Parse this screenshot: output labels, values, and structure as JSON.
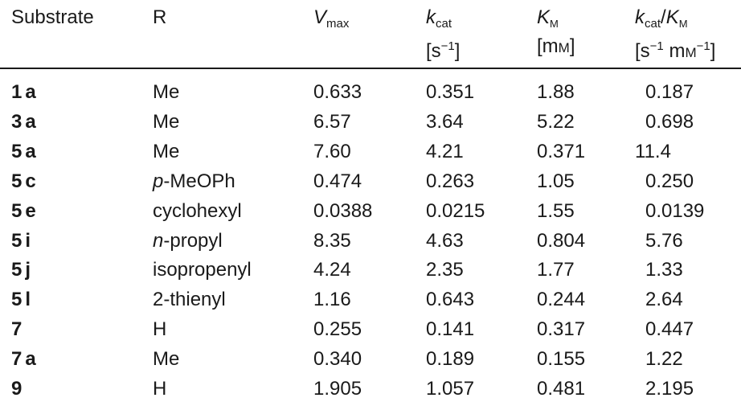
{
  "table": {
    "header": [
      [
        [
          {
            "t": "Substrate"
          }
        ]
      ],
      [
        [
          {
            "t": "R"
          }
        ]
      ],
      [
        [
          {
            "t": "V",
            "s": "italic"
          },
          {
            "t": "max",
            "s": "sub"
          }
        ]
      ],
      [
        [
          {
            "t": "k",
            "s": "italic"
          },
          {
            "t": "cat",
            "s": "sub"
          }
        ],
        [
          {
            "t": "[s"
          },
          {
            "t": "−1",
            "s": "sup"
          },
          {
            "t": "]"
          }
        ]
      ],
      [
        [
          {
            "t": "K",
            "s": "italic"
          },
          {
            "t": "M",
            "s": "sub smallcaps"
          }
        ],
        [
          {
            "t": "[m"
          },
          {
            "t": "M",
            "s": "smallcaps"
          },
          {
            "t": "]"
          }
        ]
      ],
      [
        [
          {
            "t": "k",
            "s": "italic"
          },
          {
            "t": "cat",
            "s": "sub"
          },
          {
            "t": "/"
          },
          {
            "t": "K",
            "s": "italic"
          },
          {
            "t": "M",
            "s": "sub smallcaps"
          }
        ],
        [
          {
            "t": "[s"
          },
          {
            "t": "−1",
            "s": "sup"
          },
          {
            "t": " m"
          },
          {
            "t": "M",
            "s": "smallcaps"
          },
          {
            "t": "−1",
            "s": "sup"
          },
          {
            "t": "]"
          }
        ]
      ]
    ],
    "rows": [
      {
        "substrate": "1a",
        "r": [
          {
            "t": "Me"
          }
        ],
        "values": [
          "0.633",
          "0.351",
          "1.88",
          "0.187"
        ]
      },
      {
        "substrate": "3a",
        "r": [
          {
            "t": "Me"
          }
        ],
        "values": [
          "6.57",
          "3.64",
          "5.22",
          "0.698"
        ]
      },
      {
        "substrate": "5a",
        "r": [
          {
            "t": "Me"
          }
        ],
        "values": [
          "7.60",
          "4.21",
          "0.371",
          "11.4"
        ]
      },
      {
        "substrate": "5c",
        "r": [
          {
            "t": "p",
            "s": "italic"
          },
          {
            "t": "-MeOPh"
          }
        ],
        "values": [
          "0.474",
          "0.263",
          "1.05",
          "0.250"
        ]
      },
      {
        "substrate": "5e",
        "r": [
          {
            "t": "cyclohexyl"
          }
        ],
        "values": [
          "0.0388",
          "0.0215",
          "1.55",
          "0.0139"
        ]
      },
      {
        "substrate": "5i",
        "r": [
          {
            "t": "n",
            "s": "italic"
          },
          {
            "t": "-propyl"
          }
        ],
        "values": [
          "8.35",
          "4.63",
          "0.804",
          "5.76"
        ]
      },
      {
        "substrate": "5j",
        "r": [
          {
            "t": "isopropenyl"
          }
        ],
        "values": [
          "4.24",
          "2.35",
          "1.77",
          "1.33"
        ]
      },
      {
        "substrate": "5l",
        "r": [
          {
            "t": "2-thienyl"
          }
        ],
        "values": [
          "1.16",
          "0.643",
          "0.244",
          "2.64"
        ]
      },
      {
        "substrate": "7",
        "r": [
          {
            "t": "H"
          }
        ],
        "values": [
          "0.255",
          "0.141",
          "0.317",
          "0.447"
        ]
      },
      {
        "substrate": "7a",
        "r": [
          {
            "t": "Me"
          }
        ],
        "values": [
          "0.340",
          "0.189",
          "0.155",
          "1.22"
        ]
      },
      {
        "substrate": "9",
        "r": [
          {
            "t": "H"
          }
        ],
        "values": [
          "1.905",
          "1.057",
          "0.481",
          "2.195"
        ]
      }
    ]
  }
}
